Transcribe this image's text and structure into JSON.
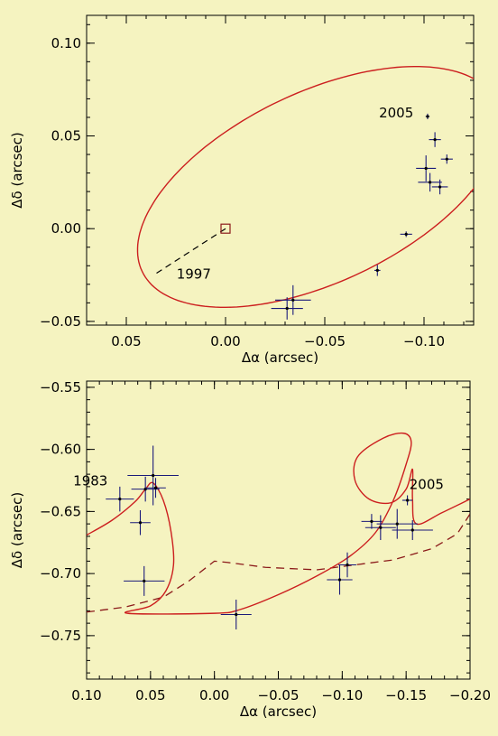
{
  "chart_data": [
    {
      "type": "scatter",
      "title": "",
      "xlabel": "Δα (arcsec)",
      "ylabel": "Δδ (arcsec)",
      "xlim": [
        0.07,
        -0.125
      ],
      "ylim": [
        -0.052,
        0.115
      ],
      "x_ticks": [
        0.05,
        0.0,
        -0.05,
        -0.1
      ],
      "x_tick_labels": [
        "0.05",
        "0.00",
        "−0.05",
        "−0.10"
      ],
      "y_ticks": [
        -0.05,
        0.0,
        0.05,
        0.1
      ],
      "y_tick_labels": [
        "−0.05",
        "0.00",
        "0.05",
        "0.10"
      ],
      "grid": false,
      "annotations": [
        {
          "text": "2005",
          "x": -0.086,
          "y": 0.06
        },
        {
          "text": "1997",
          "x": 0.016,
          "y": -0.027
        }
      ],
      "primary_star": {
        "x": 0.0,
        "y": 0.0,
        "marker": "square"
      },
      "orbit": {
        "center": [
          -0.0475,
          0.0225
        ],
        "semi_axes": [
          0.1005,
          0.0505
        ],
        "rotation_deg": 28,
        "color": "#cc1f1f"
      },
      "node_line": {
        "from": [
          0.0,
          0.0
        ],
        "to": [
          0.0355,
          -0.0245
        ],
        "style": "dashed"
      },
      "observations": [
        {
          "x": -0.1018,
          "y": 0.0605,
          "ex": 0.001,
          "ey": 0.0015
        },
        {
          "x": -0.1055,
          "y": 0.048,
          "ex": 0.003,
          "ey": 0.004
        },
        {
          "x": -0.1115,
          "y": 0.0375,
          "ex": 0.003,
          "ey": 0.0025
        },
        {
          "x": -0.101,
          "y": 0.0325,
          "ex": 0.005,
          "ey": 0.007
        },
        {
          "x": -0.103,
          "y": 0.025,
          "ex": 0.006,
          "ey": 0.005
        },
        {
          "x": -0.108,
          "y": 0.0225,
          "ex": 0.004,
          "ey": 0.004
        },
        {
          "x": -0.091,
          "y": -0.003,
          "ex": 0.003,
          "ey": 0.0015
        },
        {
          "x": -0.0765,
          "y": -0.0225,
          "ex": 0.0015,
          "ey": 0.003
        },
        {
          "x": -0.034,
          "y": -0.0385,
          "ex": 0.009,
          "ey": 0.008
        },
        {
          "x": -0.031,
          "y": -0.043,
          "ex": 0.008,
          "ey": 0.006
        }
      ]
    },
    {
      "type": "scatter",
      "title": "",
      "xlabel": "Δα (arcsec)",
      "ylabel": "Δδ (arcsec)",
      "xlim": [
        0.1,
        -0.2
      ],
      "ylim": [
        -0.785,
        -0.545
      ],
      "x_ticks": [
        0.1,
        0.05,
        0.0,
        -0.05,
        -0.1,
        -0.15,
        -0.2
      ],
      "x_tick_labels": [
        "0.10",
        "0.05",
        "0.00",
        "−0.05",
        "−0.10",
        "−0.15",
        "−0.20"
      ],
      "y_ticks": [
        -0.55,
        -0.6,
        -0.65,
        -0.7,
        -0.75
      ],
      "y_tick_labels": [
        "−0.55",
        "−0.60",
        "−0.65",
        "−0.70",
        "−0.75"
      ],
      "grid": false,
      "annotations": [
        {
          "text": "1983",
          "x": 0.097,
          "y": -0.629
        },
        {
          "text": "2005",
          "x": -0.166,
          "y": -0.632
        }
      ],
      "photocenter_track": {
        "color": "#cc1f1f",
        "points": [
          [
            0.1,
            -0.669
          ],
          [
            0.08,
            -0.657
          ],
          [
            0.062,
            -0.642
          ],
          [
            0.054,
            -0.632
          ],
          [
            0.048,
            -0.627
          ],
          [
            0.04,
            -0.641
          ],
          [
            0.034,
            -0.666
          ],
          [
            0.032,
            -0.693
          ],
          [
            0.038,
            -0.714
          ],
          [
            0.05,
            -0.726
          ],
          [
            0.068,
            -0.732
          ],
          [
            0.0,
            -0.732
          ],
          [
            -0.02,
            -0.729
          ],
          [
            -0.05,
            -0.717
          ],
          [
            -0.08,
            -0.702
          ],
          [
            -0.106,
            -0.686
          ],
          [
            -0.126,
            -0.667
          ],
          [
            -0.14,
            -0.641
          ],
          [
            -0.15,
            -0.612
          ],
          [
            -0.154,
            -0.594
          ],
          [
            -0.148,
            -0.587
          ],
          [
            -0.132,
            -0.591
          ],
          [
            -0.112,
            -0.606
          ],
          [
            -0.11,
            -0.625
          ],
          [
            -0.121,
            -0.64
          ],
          [
            -0.138,
            -0.643
          ],
          [
            -0.15,
            -0.632
          ],
          [
            -0.155,
            -0.616
          ],
          [
            -0.155,
            -0.64
          ],
          [
            -0.158,
            -0.66
          ],
          [
            -0.178,
            -0.651
          ],
          [
            -0.2,
            -0.64
          ]
        ]
      },
      "barycenter_track": {
        "color": "#8b1a1a",
        "style": "dashed",
        "points": [
          [
            0.1,
            -0.731
          ],
          [
            0.07,
            -0.727
          ],
          [
            0.04,
            -0.719
          ],
          [
            0.02,
            -0.706
          ],
          [
            0.0,
            -0.69
          ],
          [
            -0.01,
            -0.691
          ],
          [
            -0.04,
            -0.695
          ],
          [
            -0.08,
            -0.697
          ],
          [
            -0.11,
            -0.693
          ],
          [
            -0.14,
            -0.689
          ],
          [
            -0.17,
            -0.68
          ],
          [
            -0.19,
            -0.668
          ],
          [
            -0.2,
            -0.652
          ]
        ]
      },
      "observations": [
        {
          "x": 0.074,
          "y": -0.64,
          "ex": 0.011,
          "ey": 0.01
        },
        {
          "x": 0.054,
          "y": -0.632,
          "ex": 0.011,
          "ey": 0.01
        },
        {
          "x": 0.048,
          "y": -0.621,
          "ex": 0.02,
          "ey": 0.024
        },
        {
          "x": 0.046,
          "y": -0.631,
          "ex": 0.008,
          "ey": 0.008
        },
        {
          "x": 0.058,
          "y": -0.659,
          "ex": 0.008,
          "ey": 0.01
        },
        {
          "x": 0.055,
          "y": -0.706,
          "ex": 0.016,
          "ey": 0.012
        },
        {
          "x": -0.017,
          "y": -0.733,
          "ex": 0.012,
          "ey": 0.012
        },
        {
          "x": -0.104,
          "y": -0.693,
          "ex": 0.007,
          "ey": 0.01
        },
        {
          "x": -0.098,
          "y": -0.705,
          "ex": 0.01,
          "ey": 0.012
        },
        {
          "x": -0.123,
          "y": -0.658,
          "ex": 0.008,
          "ey": 0.006
        },
        {
          "x": -0.13,
          "y": -0.663,
          "ex": 0.012,
          "ey": 0.01
        },
        {
          "x": -0.143,
          "y": -0.66,
          "ex": 0.016,
          "ey": 0.012
        },
        {
          "x": -0.155,
          "y": -0.665,
          "ex": 0.016,
          "ey": 0.008
        },
        {
          "x": -0.151,
          "y": -0.641,
          "ex": 0.004,
          "ey": 0.004
        }
      ]
    }
  ]
}
